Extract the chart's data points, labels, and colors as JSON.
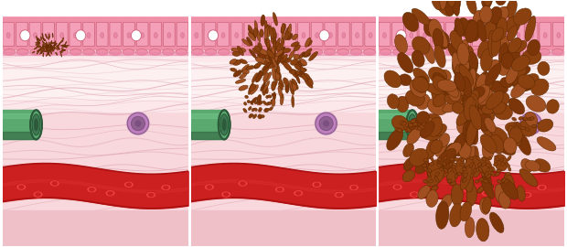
{
  "fig_width": 6.2,
  "fig_height": 2.7,
  "dpi": 100,
  "bg_color": "#ffffff",
  "skin_bg_top": "#f5c5cc",
  "skin_bg_mid": "#f9dde0",
  "skin_bg_light": "#fceaec",
  "tissue_fiber_color": "#e8a8b8",
  "skin_band_color": "#f090a8",
  "skin_band_edge": "#d06880",
  "skin_cell_color": "#f4a0b8",
  "skin_cell_edge": "#d06880",
  "hole_color": "#ffffff",
  "green_vessel_outer": "#5aaa70",
  "green_vessel_inner": "#3d7a52",
  "green_vessel_dark": "#2d5a3a",
  "green_vessel_light": "#7acc90",
  "purple_cell_outer": "#c080c0",
  "purple_cell_inner": "#906090",
  "purple_cell_dark": "#7a5080",
  "blood_red": "#cc2020",
  "blood_dark": "#aa1010",
  "blood_light": "#dd4444",
  "rbc_outer": "#cc1818",
  "rbc_inner": "#ee5555",
  "tumor_main": "#8B4010",
  "tumor_dark": "#5C2800",
  "tumor_light": "#A05020",
  "tumor_mid": "#7B3508",
  "divider_color": "#e0e0e0"
}
